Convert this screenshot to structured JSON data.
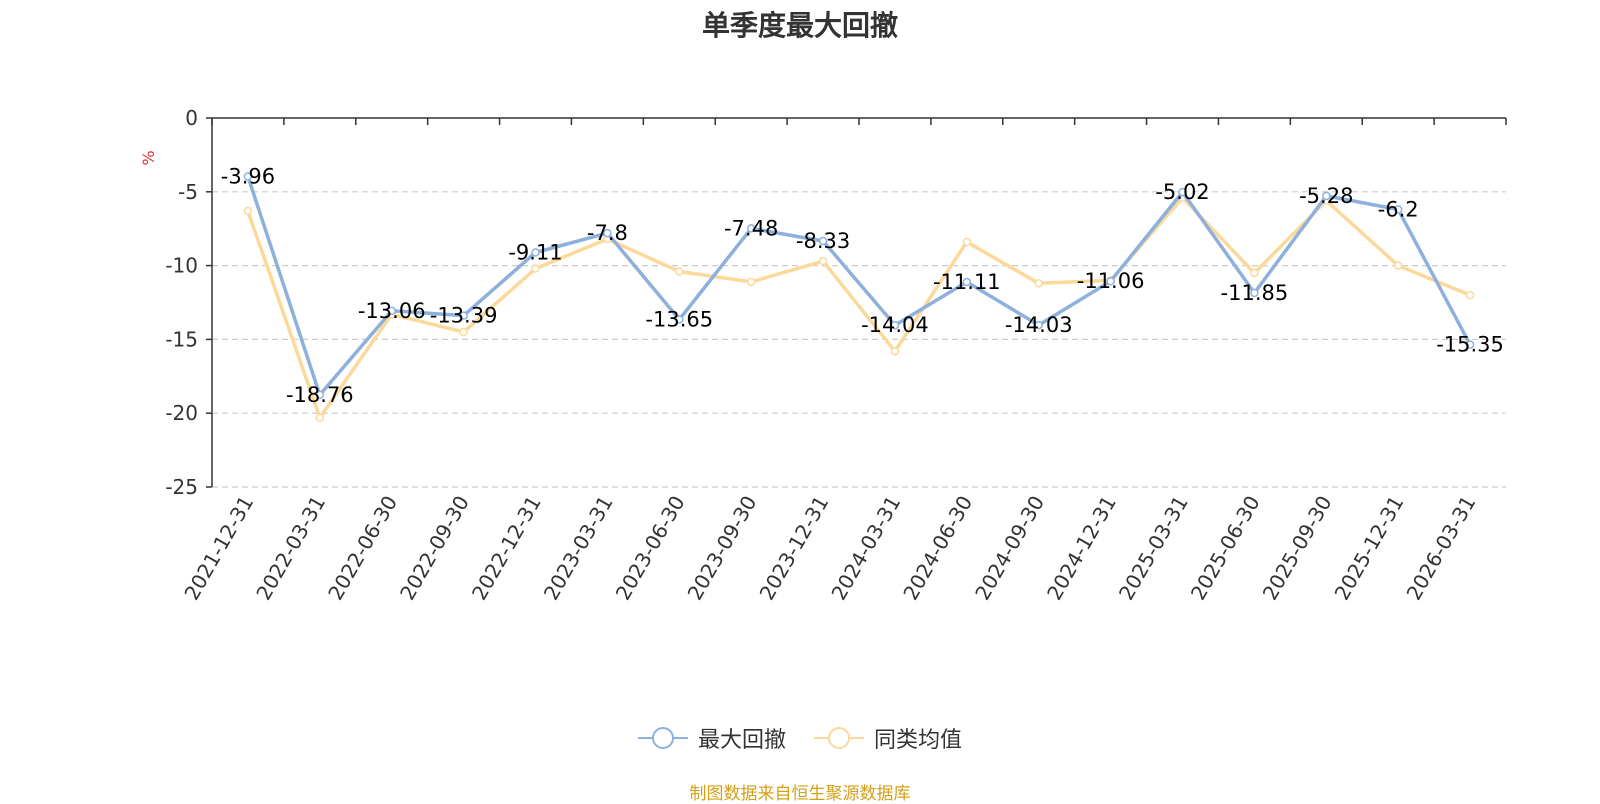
{
  "chart_data": {
    "type": "line",
    "title": "单季度最大回撤",
    "ylabel": "%",
    "xlabel": "",
    "ylim": [
      -25,
      0
    ],
    "yticks": [
      0,
      -5,
      -10,
      -15,
      -20,
      -25
    ],
    "grid": true,
    "legend_position": "bottom",
    "categories": [
      "2021-12-31",
      "2022-03-31",
      "2022-06-30",
      "2022-09-30",
      "2022-12-31",
      "2023-03-31",
      "2023-06-30",
      "2023-09-30",
      "2023-12-31",
      "2024-03-31",
      "2024-06-30",
      "2024-09-30",
      "2024-12-31",
      "2025-03-31",
      "2025-06-30",
      "2025-09-30",
      "2025-12-31",
      "2026-03-31"
    ],
    "series": [
      {
        "name": "最大回撤",
        "color": "#8eb0dc",
        "show_labels": true,
        "labels": [
          "-3.96",
          "-18.76",
          "-13.06",
          "-13.39",
          "-9.11",
          "-7.8",
          "-13.65",
          "-7.48",
          "-8.33",
          "-14.04",
          "-11.11",
          "-14.03",
          "-11.06",
          "-5.02",
          "-11.85",
          "-5.28",
          "-6.2",
          "-15.35"
        ],
        "values": [
          -3.96,
          -18.76,
          -13.06,
          -13.39,
          -9.11,
          -7.8,
          -13.65,
          -7.48,
          -8.33,
          -14.04,
          -11.11,
          -14.03,
          -11.06,
          -5.02,
          -11.85,
          -5.28,
          -6.2,
          -15.35
        ]
      },
      {
        "name": "同类均值",
        "color": "#fcd99a",
        "show_labels": false,
        "values": [
          -6.3,
          -20.3,
          -13.3,
          -14.5,
          -10.2,
          -8.2,
          -10.4,
          -11.1,
          -9.7,
          -15.8,
          -8.4,
          -11.2,
          -11.0,
          -5.4,
          -10.5,
          -5.6,
          -10.0,
          -12.0
        ]
      }
    ]
  },
  "footer": {
    "source": "制图数据来自恒生聚源数据库"
  }
}
